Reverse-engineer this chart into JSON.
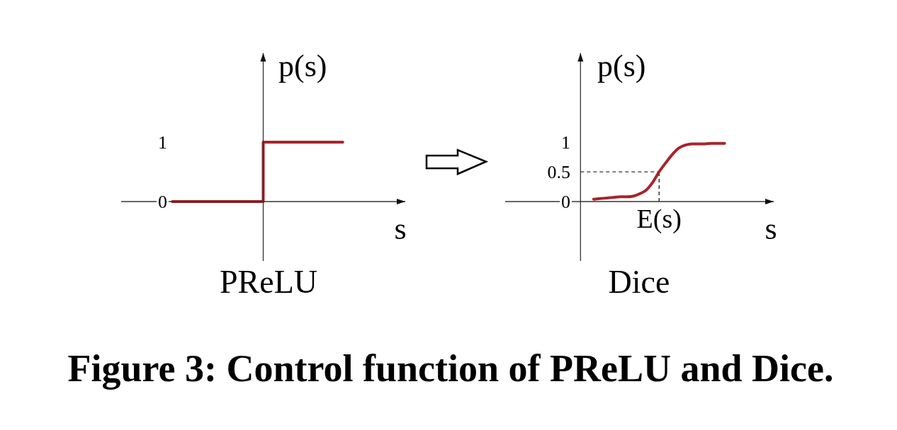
{
  "chart_data": [
    {
      "type": "step",
      "title": "PReLU",
      "xlabel": "s",
      "ylabel": "p(s)",
      "categories": [
        null,
        null,
        null,
        null,
        null,
        null,
        null,
        null,
        null,
        null,
        null,
        null,
        null,
        null,
        null,
        null,
        null,
        null,
        null,
        null,
        null,
        null,
        null,
        null,
        null
      ],
      "series": [
        {
          "color": "#a8232b",
          "values": [
            null,
            null,
            null,
            null,
            0,
            0,
            0,
            0,
            0,
            0,
            0,
            0,
            1,
            1,
            1,
            1,
            1,
            1,
            1,
            1,
            null,
            null,
            null,
            null,
            null
          ]
        }
      ],
      "ylim": [
        -1,
        2.5
      ],
      "yticks": [
        0,
        1
      ],
      "tick_labels": "y",
      "annotations": [
        "Figure 3: Control function of PReLU and Dice."
      ]
    },
    {
      "type": "line",
      "title": "Dice",
      "xlabel": "s",
      "ylabel": "p(s)",
      "categories": [
        null,
        null,
        null,
        null,
        null,
        null,
        null,
        null,
        null,
        null,
        null,
        null,
        null,
        null,
        null,
        null,
        null,
        null,
        null,
        null,
        null,
        null,
        null,
        "E(s)",
        null,
        null,
        null,
        null,
        null,
        null,
        null,
        null,
        null,
        null,
        null,
        null,
        null,
        null,
        null,
        null,
        null
      ],
      "series": [
        {
          "color": "#a8232b",
          "values": [
            null,
            null,
            null,
            null,
            null,
            null,
            null,
            null,
            null,
            null,
            null,
            null,
            null,
            0.04,
            0.05,
            0.06,
            0.07,
            0.08,
            0.08,
            0.09,
            0.13,
            0.19,
            0.32,
            0.5,
            0.65,
            0.79,
            0.9,
            0.95,
            0.97,
            0.97,
            0.97,
            0.98,
            0.98,
            0.98,
            null,
            null,
            null,
            null,
            null,
            null,
            null
          ]
        }
      ],
      "ylim": [
        -1,
        2.5
      ],
      "yticks": [
        0,
        0.5,
        1
      ],
      "ref_lines": [
        {
          "axis": "y",
          "value": 0.5,
          "line_style": "dashed"
        },
        {
          "axis": "x",
          "value": "E(s)",
          "line_style": "dashed"
        }
      ]
    }
  ]
}
